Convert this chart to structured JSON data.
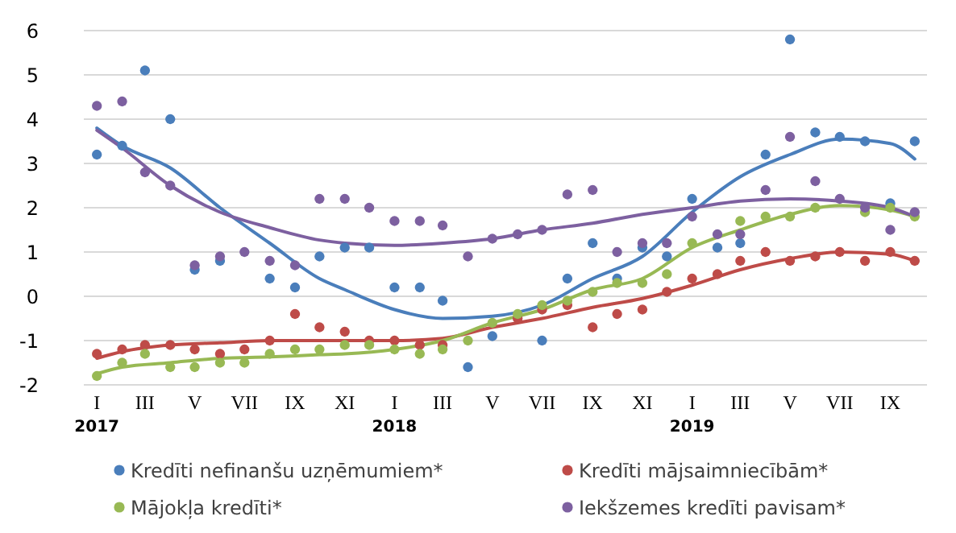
{
  "chart_data": {
    "type": "scatter",
    "x": [
      "2017-01",
      "2017-02",
      "2017-03",
      "2017-04",
      "2017-05",
      "2017-06",
      "2017-07",
      "2017-08",
      "2017-09",
      "2017-10",
      "2017-11",
      "2017-12",
      "2018-01",
      "2018-02",
      "2018-03",
      "2018-04",
      "2018-05",
      "2018-06",
      "2018-07",
      "2018-08",
      "2018-09",
      "2018-10",
      "2018-11",
      "2018-12",
      "2019-01",
      "2019-02",
      "2019-03",
      "2019-04",
      "2019-05",
      "2019-06",
      "2019-07",
      "2019-08",
      "2019-09",
      "2019-10"
    ],
    "xlim": [
      "2016-12-16",
      "2019-10-16"
    ],
    "xticks": [
      {
        "value": "2017-01",
        "label": "I\n2017"
      },
      {
        "value": "2017-03",
        "label": "III"
      },
      {
        "value": "2017-05",
        "label": "V"
      },
      {
        "value": "2017-07",
        "label": "VII"
      },
      {
        "value": "2017-09",
        "label": "IX"
      },
      {
        "value": "2017-11",
        "label": "XI"
      },
      {
        "value": "2018-01",
        "label": "I\n2018"
      },
      {
        "value": "2018-03",
        "label": "III"
      },
      {
        "value": "2018-05",
        "label": "V"
      },
      {
        "value": "2018-07",
        "label": "VII"
      },
      {
        "value": "2018-09",
        "label": "IX"
      },
      {
        "value": "2018-11",
        "label": "XI"
      },
      {
        "value": "2019-01",
        "label": "I\n2019"
      },
      {
        "value": "2019-03",
        "label": "III"
      },
      {
        "value": "2019-05",
        "label": "V"
      },
      {
        "value": "2019-07",
        "label": "VII"
      },
      {
        "value": "2019-09",
        "label": "IX"
      }
    ],
    "ylim": [
      -2,
      6
    ],
    "yticks": [
      -2,
      -1,
      0,
      1,
      2,
      3,
      4,
      5,
      6
    ],
    "grid": "y",
    "legend": "bottom",
    "marker": "circle",
    "series": [
      {
        "name": "Kredīti nefinanšu uzņēmumiem*",
        "color": "#4a7ebb",
        "values": [
          3.2,
          3.4,
          5.1,
          4.0,
          0.6,
          0.8,
          null,
          0.4,
          0.2,
          0.9,
          1.1,
          1.1,
          0.2,
          0.2,
          -0.1,
          -1.6,
          -0.9,
          null,
          -1.0,
          0.4,
          1.2,
          0.4,
          1.1,
          0.9,
          2.2,
          1.1,
          1.2,
          3.2,
          5.8,
          3.7,
          3.6,
          3.5,
          2.1,
          3.5
        ]
      },
      {
        "name": "Kredīti mājsaimniecībām*",
        "color": "#be4b48",
        "values": [
          -1.3,
          -1.2,
          -1.1,
          -1.1,
          -1.2,
          -1.3,
          -1.2,
          -1.0,
          -0.4,
          -0.7,
          -0.8,
          -1.0,
          -1.0,
          -1.1,
          -1.1,
          null,
          null,
          -0.5,
          -0.3,
          -0.2,
          -0.7,
          -0.4,
          -0.3,
          0.1,
          0.4,
          0.5,
          0.8,
          1.0,
          0.8,
          0.9,
          1.0,
          0.8,
          1.0,
          0.8
        ]
      },
      {
        "name": "Mājokļa kredīti*",
        "color": "#98b954",
        "values": [
          -1.8,
          -1.5,
          -1.3,
          -1.6,
          -1.6,
          -1.5,
          -1.5,
          -1.3,
          -1.2,
          -1.2,
          -1.1,
          -1.1,
          -1.2,
          -1.3,
          -1.2,
          -1.0,
          -0.6,
          -0.4,
          -0.2,
          -0.1,
          0.1,
          0.3,
          0.3,
          0.5,
          1.2,
          null,
          1.7,
          1.8,
          1.8,
          2.0,
          null,
          1.9,
          2.0,
          1.8
        ]
      },
      {
        "name": "Iekšzemes kredīti pavisam*",
        "color": "#7d60a0",
        "values": [
          4.3,
          4.4,
          2.8,
          2.5,
          0.7,
          0.9,
          1.0,
          0.8,
          0.7,
          2.2,
          2.2,
          2.0,
          1.7,
          1.7,
          1.6,
          0.9,
          1.3,
          1.4,
          1.5,
          2.3,
          2.4,
          1.0,
          1.2,
          1.2,
          1.8,
          1.4,
          1.4,
          2.4,
          3.6,
          2.6,
          2.2,
          2.0,
          1.5,
          1.9
        ]
      },
      {
        "type": "line",
        "marker": "none",
        "color": "#4a7ebb",
        "x": [
          "2017-01",
          "2017-02",
          "2017-04",
          "2017-06",
          "2017-08",
          "2017-10",
          "2017-11",
          "2018-01",
          "2018-03",
          "2018-05",
          "2018-07",
          "2018-09",
          "2018-11",
          "2019-01",
          "2019-03",
          "2019-05",
          "2019-07",
          "2019-09",
          "2019-10"
        ],
        "values": [
          3.8,
          3.4,
          2.9,
          2.0,
          1.2,
          0.4,
          0.15,
          -0.3,
          -0.5,
          -0.45,
          -0.2,
          0.4,
          0.9,
          1.9,
          2.7,
          3.2,
          3.55,
          3.45,
          3.1
        ]
      },
      {
        "type": "line",
        "marker": "none",
        "color": "#be4b48",
        "x": [
          "2017-01",
          "2017-02",
          "2017-04",
          "2017-06",
          "2017-08",
          "2017-10",
          "2017-11",
          "2018-01",
          "2018-03",
          "2018-05",
          "2018-07",
          "2018-09",
          "2018-11",
          "2019-01",
          "2019-03",
          "2019-05",
          "2019-07",
          "2019-09",
          "2019-10"
        ],
        "values": [
          -1.4,
          -1.25,
          -1.1,
          -1.05,
          -1.0,
          -1.0,
          -1.0,
          -1.0,
          -0.95,
          -0.7,
          -0.5,
          -0.25,
          -0.05,
          0.25,
          0.6,
          0.85,
          1.0,
          0.95,
          0.8
        ]
      },
      {
        "type": "line",
        "marker": "none",
        "color": "#98b954",
        "x": [
          "2017-01",
          "2017-02",
          "2017-04",
          "2017-06",
          "2017-08",
          "2017-10",
          "2017-11",
          "2018-01",
          "2018-03",
          "2018-05",
          "2018-07",
          "2018-09",
          "2018-11",
          "2019-01",
          "2019-03",
          "2019-05",
          "2019-07",
          "2019-09",
          "2019-10"
        ],
        "values": [
          -1.75,
          -1.6,
          -1.5,
          -1.4,
          -1.37,
          -1.32,
          -1.3,
          -1.2,
          -1.0,
          -0.6,
          -0.3,
          0.15,
          0.4,
          1.1,
          1.5,
          1.85,
          2.05,
          1.95,
          1.8
        ]
      },
      {
        "type": "line",
        "marker": "none",
        "color": "#7d60a0",
        "x": [
          "2017-01",
          "2017-02",
          "2017-04",
          "2017-06",
          "2017-08",
          "2017-10",
          "2017-11",
          "2018-01",
          "2018-03",
          "2018-05",
          "2018-07",
          "2018-09",
          "2018-11",
          "2019-01",
          "2019-03",
          "2019-05",
          "2019-07",
          "2019-09",
          "2019-10"
        ],
        "values": [
          3.75,
          3.35,
          2.5,
          1.9,
          1.55,
          1.27,
          1.2,
          1.15,
          1.2,
          1.3,
          1.5,
          1.65,
          1.85,
          2.0,
          2.15,
          2.2,
          2.15,
          2.0,
          1.8
        ]
      }
    ]
  }
}
